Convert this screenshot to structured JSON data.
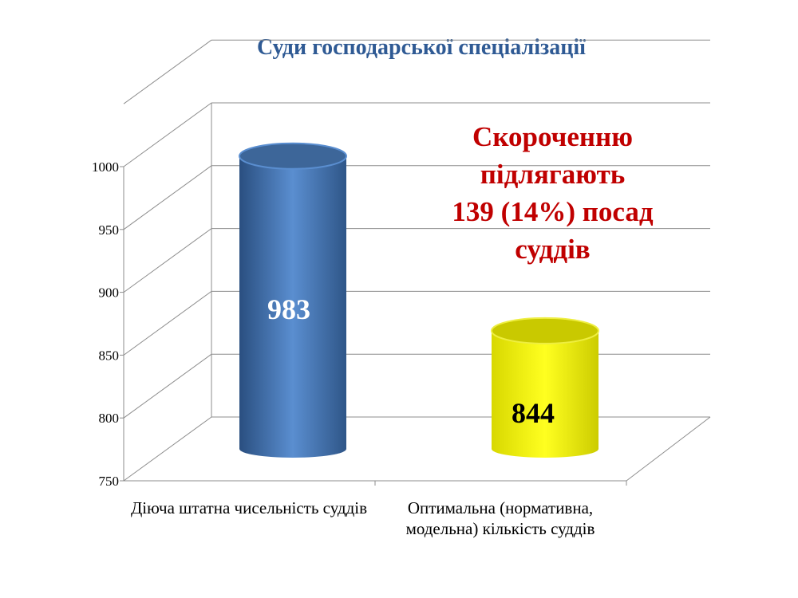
{
  "chart_data": {
    "type": "bar",
    "style": "3d-cylinder",
    "title": "Суди господарської спеціалізації",
    "categories": [
      "Діюча штатна чисельність суддів",
      "Оптимальна (нормативна, модельна) кількість суддів"
    ],
    "values": [
      983,
      844
    ],
    "data_labels": [
      "983",
      "844"
    ],
    "colors": [
      "#4a7ebf",
      "#ffff00"
    ],
    "data_label_colors": [
      "#ffffff",
      "#000000"
    ],
    "ylim": [
      750,
      1000
    ],
    "yticks": [
      750,
      800,
      850,
      900,
      950,
      1000
    ],
    "grid": true,
    "xlabel": "",
    "ylabel": "",
    "annotation": [
      "Скороченню",
      "підлягають",
      "139 (14%) посад",
      "суддів"
    ],
    "annotation_color": "#c00000"
  }
}
